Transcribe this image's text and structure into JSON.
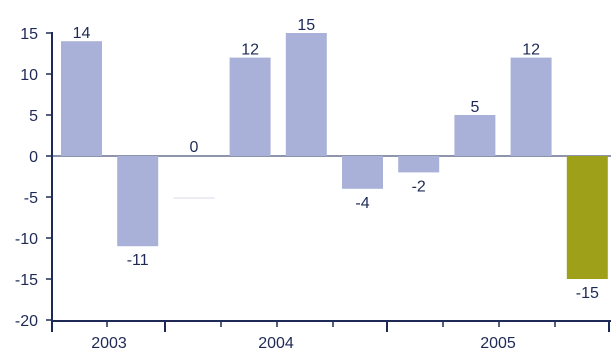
{
  "chart_data": {
    "type": "bar",
    "title": "",
    "xlabel": "",
    "ylabel": "",
    "ylim": [
      -20,
      15
    ],
    "yticks": [
      15,
      10,
      5,
      0,
      -5,
      -10,
      -15,
      -20
    ],
    "grid": false,
    "legend": "none",
    "groups": [
      "2003",
      "2004",
      "2005"
    ],
    "bars": [
      {
        "group": "2003",
        "value": 14,
        "label": "14",
        "highlight": false
      },
      {
        "group": "2003",
        "value": -11,
        "label": "-11",
        "highlight": false
      },
      {
        "group": "2004",
        "value": 0,
        "label": "0",
        "highlight": false
      },
      {
        "group": "2004",
        "value": 12,
        "label": "12",
        "highlight": false
      },
      {
        "group": "2004",
        "value": 15,
        "label": "15",
        "highlight": false
      },
      {
        "group": "2004",
        "value": -4,
        "label": "-4",
        "highlight": false
      },
      {
        "group": "2005",
        "value": -2,
        "label": "-2",
        "highlight": false
      },
      {
        "group": "2005",
        "value": 5,
        "label": "5",
        "highlight": false
      },
      {
        "group": "2005",
        "value": 12,
        "label": "12",
        "highlight": false
      },
      {
        "group": "2005",
        "value": -15,
        "label": "-15",
        "highlight": true
      }
    ]
  },
  "colors": {
    "bar": "#aab1d9",
    "highlight": "#9ea01a",
    "axis": "#1e2a55",
    "text": "#1e2a55",
    "zero_line": "#1e2a55",
    "empty_bar": "#d9dbe8"
  }
}
